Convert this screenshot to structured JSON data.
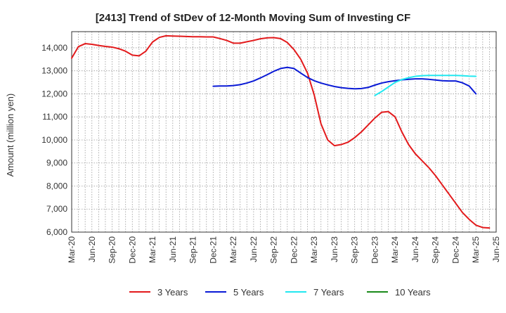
{
  "chart_data": {
    "type": "line",
    "title": "[2413]  Trend of StDev of 12-Month Moving Sum of Investing CF",
    "xlabel": "",
    "ylabel": "Amount (million yen)",
    "ylim": [
      6000,
      14700
    ],
    "yticks": [
      6000,
      7000,
      8000,
      9000,
      10000,
      11000,
      12000,
      13000,
      14000
    ],
    "ytick_labels": [
      "6,000",
      "7,000",
      "8,000",
      "9,000",
      "10,000",
      "11,000",
      "12,000",
      "13,000",
      "14,000"
    ],
    "x_categories": [
      "Mar-20",
      "Apr-20",
      "May-20",
      "Jun-20",
      "Jul-20",
      "Aug-20",
      "Sep-20",
      "Oct-20",
      "Nov-20",
      "Dec-20",
      "Jan-21",
      "Feb-21",
      "Mar-21",
      "Apr-21",
      "May-21",
      "Jun-21",
      "Jul-21",
      "Aug-21",
      "Sep-21",
      "Oct-21",
      "Nov-21",
      "Dec-21",
      "Jan-22",
      "Feb-22",
      "Mar-22",
      "Apr-22",
      "May-22",
      "Jun-22",
      "Jul-22",
      "Aug-22",
      "Sep-22",
      "Oct-22",
      "Nov-22",
      "Dec-22",
      "Jan-23",
      "Feb-23",
      "Mar-23",
      "Apr-23",
      "May-23",
      "Jun-23",
      "Jul-23",
      "Aug-23",
      "Sep-23",
      "Oct-23",
      "Nov-23",
      "Dec-23",
      "Jan-24",
      "Feb-24",
      "Mar-24",
      "Apr-24",
      "May-24",
      "Jun-24",
      "Jul-24",
      "Aug-24",
      "Sep-24",
      "Oct-24",
      "Nov-24",
      "Dec-24",
      "Jan-25",
      "Feb-25",
      "Mar-25",
      "Apr-25",
      "May-25",
      "Jun-25"
    ],
    "x_tick_labels": [
      "Mar-20",
      "Jun-20",
      "Sep-20",
      "Dec-20",
      "Mar-21",
      "Jun-21",
      "Sep-21",
      "Dec-21",
      "Mar-22",
      "Jun-22",
      "Sep-22",
      "Dec-22",
      "Mar-23",
      "Jun-23",
      "Sep-23",
      "Dec-23",
      "Mar-24",
      "Jun-24",
      "Sep-24",
      "Dec-24",
      "Mar-25",
      "Jun-25"
    ],
    "grid": true,
    "legend_position": "bottom",
    "series": [
      {
        "name": "3 Years",
        "color": "#e31a1c",
        "start": "Mar-20",
        "values": [
          13550,
          14050,
          14180,
          14150,
          14100,
          14060,
          14030,
          13960,
          13850,
          13680,
          13650,
          13850,
          14250,
          14450,
          14520,
          14510,
          14500,
          14490,
          14480,
          14480,
          14470,
          14470,
          14400,
          14320,
          14200,
          14200,
          14260,
          14320,
          14390,
          14430,
          14440,
          14400,
          14230,
          13920,
          13500,
          12900,
          11950,
          10700,
          10000,
          9750,
          9800,
          9900,
          10100,
          10350,
          10650,
          10950,
          11200,
          11230,
          11000,
          10350,
          9800,
          9400,
          9100,
          8800,
          8450,
          8050,
          7650,
          7250,
          6850,
          6550,
          6300,
          6200,
          6180
        ]
      },
      {
        "name": "5 Years",
        "color": "#0a1ad6",
        "start": "Dec-21",
        "values": [
          12330,
          12340,
          12340,
          12360,
          12400,
          12470,
          12560,
          12690,
          12830,
          12980,
          13100,
          13150,
          13100,
          12900,
          12710,
          12570,
          12470,
          12390,
          12320,
          12270,
          12240,
          12220,
          12230,
          12280,
          12380,
          12470,
          12530,
          12570,
          12610,
          12630,
          12650,
          12650,
          12630,
          12600,
          12570,
          12560,
          12560,
          12480,
          12340,
          12000
        ]
      },
      {
        "name": "7 Years",
        "color": "#22e8f0",
        "start": "Dec-23",
        "values": [
          11930,
          12100,
          12300,
          12500,
          12620,
          12700,
          12760,
          12790,
          12800,
          12800,
          12800,
          12800,
          12800,
          12790,
          12770,
          12760
        ]
      },
      {
        "name": "10 Years",
        "color": "#1a8a1a",
        "start": "Mar-20",
        "values": []
      }
    ]
  }
}
